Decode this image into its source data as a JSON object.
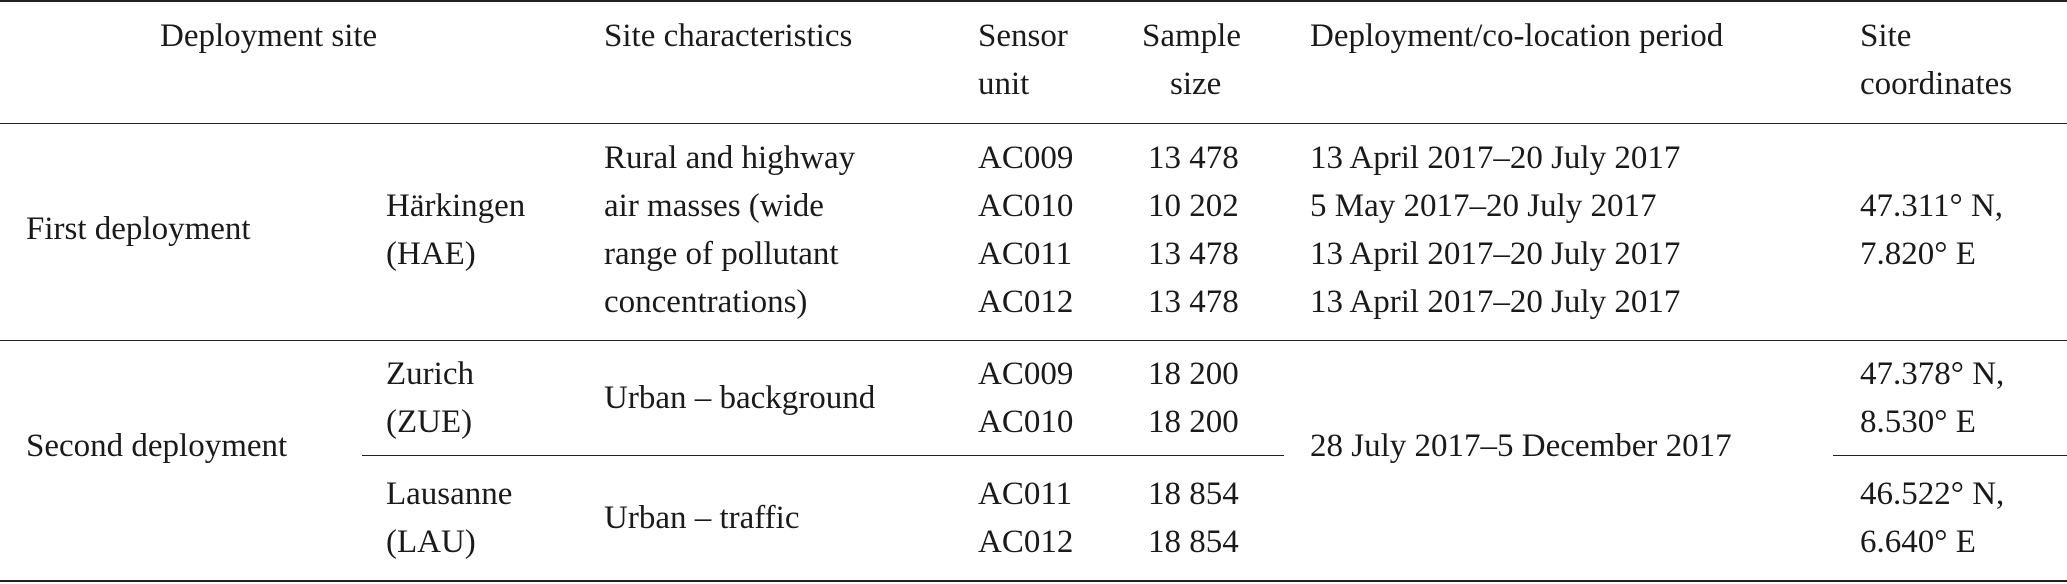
{
  "table": {
    "headers": {
      "deployment_site": "Deployment site",
      "site_characteristics": "Site characteristics",
      "sensor_unit": [
        "Sensor",
        "unit"
      ],
      "sample_size": [
        "Sample",
        "size"
      ],
      "period": "Deployment/co-location period",
      "coordinates": [
        "Site",
        "coordinates"
      ]
    },
    "groups": [
      {
        "deployment": "First deployment",
        "sites": [
          {
            "site": [
              "Härkingen",
              "(HAE)"
            ],
            "characteristics": [
              "Rural and highway",
              "air masses (wide",
              "range of pollutant",
              "concentrations)"
            ],
            "sensors": [
              {
                "unit": "AC009",
                "size": "13 478",
                "period": "13 April 2017–20 July 2017"
              },
              {
                "unit": "AC010",
                "size": "10 202",
                "period": "5 May 2017–20 July 2017"
              },
              {
                "unit": "AC011",
                "size": "13 478",
                "period": "13 April 2017–20 July 2017"
              },
              {
                "unit": "AC012",
                "size": "13 478",
                "period": "13 April 2017–20 July 2017"
              }
            ],
            "coordinates": [
              "47.311° N,",
              "7.820° E"
            ]
          }
        ]
      },
      {
        "deployment": "Second deployment",
        "period": "28 July 2017–5 December 2017",
        "sites": [
          {
            "site": [
              "Zurich",
              "(ZUE)"
            ],
            "characteristics": [
              "Urban – background"
            ],
            "sensors": [
              {
                "unit": "AC009",
                "size": "18 200"
              },
              {
                "unit": "AC010",
                "size": "18 200"
              }
            ],
            "coordinates": [
              "47.378° N,",
              "8.530° E"
            ]
          },
          {
            "site": [
              "Lausanne",
              "(LAU)"
            ],
            "characteristics": [
              "Urban – traffic"
            ],
            "sensors": [
              {
                "unit": "AC011",
                "size": "18 854"
              },
              {
                "unit": "AC012",
                "size": "18 854"
              }
            ],
            "coordinates": [
              "46.522° N,",
              "6.640° E"
            ]
          }
        ]
      }
    ]
  }
}
